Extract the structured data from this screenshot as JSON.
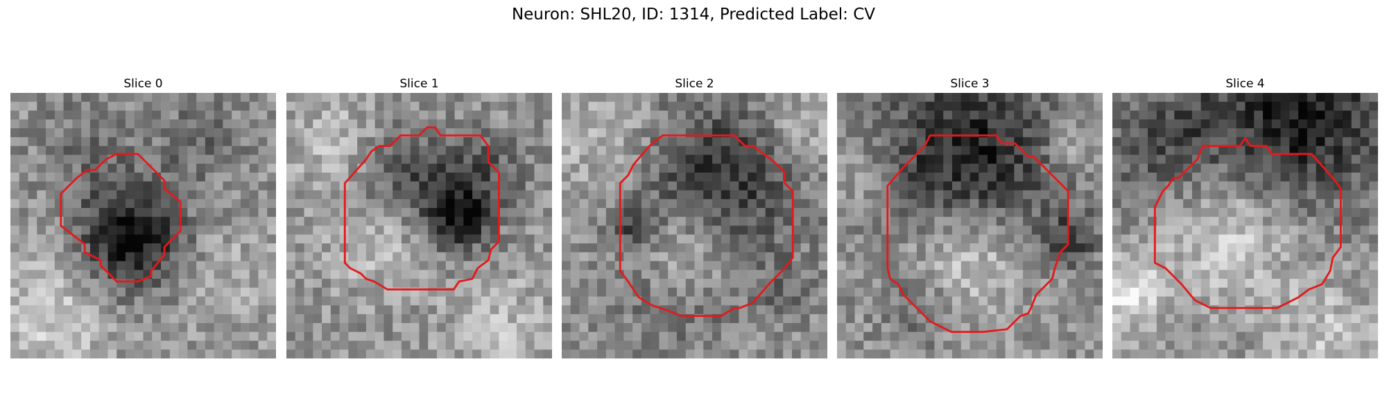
{
  "figure": {
    "title": "Neuron: SHL20, ID: 1314, Predicted Label: CV"
  },
  "colors": {
    "contour": "#e31a1c",
    "background": "#ffffff"
  },
  "slices": [
    {
      "title": "Slice 0",
      "seed": 11,
      "dark": [
        [
          0.46,
          0.55,
          0.2,
          1.0
        ],
        [
          0.72,
          0.18,
          0.15,
          0.35
        ],
        [
          0.3,
          0.2,
          0.2,
          0.25
        ]
      ],
      "bright": [
        [
          0.15,
          0.85,
          0.25,
          0.45
        ],
        [
          0.8,
          0.7,
          0.2,
          0.25
        ]
      ],
      "contour": [
        [
          0.4,
          0.23
        ],
        [
          0.48,
          0.23
        ],
        [
          0.58,
          0.33
        ],
        [
          0.58,
          0.36
        ],
        [
          0.64,
          0.41
        ],
        [
          0.64,
          0.52
        ],
        [
          0.58,
          0.58
        ],
        [
          0.58,
          0.61
        ],
        [
          0.53,
          0.67
        ],
        [
          0.53,
          0.69
        ],
        [
          0.48,
          0.71
        ],
        [
          0.4,
          0.71
        ],
        [
          0.34,
          0.65
        ],
        [
          0.34,
          0.63
        ],
        [
          0.28,
          0.6
        ],
        [
          0.28,
          0.57
        ],
        [
          0.19,
          0.5
        ],
        [
          0.19,
          0.38
        ],
        [
          0.25,
          0.32
        ],
        [
          0.29,
          0.29
        ],
        [
          0.32,
          0.29
        ],
        [
          0.36,
          0.25
        ]
      ]
    },
    {
      "title": "Slice 1",
      "seed": 23,
      "dark": [
        [
          0.65,
          0.48,
          0.12,
          0.85
        ],
        [
          0.45,
          0.32,
          0.2,
          0.55
        ],
        [
          0.75,
          0.3,
          0.15,
          0.4
        ]
      ],
      "bright": [
        [
          0.35,
          0.55,
          0.18,
          0.45
        ],
        [
          0.2,
          0.2,
          0.2,
          0.35
        ],
        [
          0.8,
          0.88,
          0.2,
          0.35
        ]
      ],
      "contour": [
        [
          0.43,
          0.16
        ],
        [
          0.5,
          0.16
        ],
        [
          0.53,
          0.13
        ],
        [
          0.56,
          0.13
        ],
        [
          0.58,
          0.16
        ],
        [
          0.73,
          0.16
        ],
        [
          0.76,
          0.2
        ],
        [
          0.76,
          0.26
        ],
        [
          0.8,
          0.3
        ],
        [
          0.8,
          0.56
        ],
        [
          0.77,
          0.59
        ],
        [
          0.76,
          0.63
        ],
        [
          0.72,
          0.66
        ],
        [
          0.7,
          0.7
        ],
        [
          0.65,
          0.71
        ],
        [
          0.63,
          0.74
        ],
        [
          0.38,
          0.74
        ],
        [
          0.33,
          0.71
        ],
        [
          0.3,
          0.7
        ],
        [
          0.28,
          0.68
        ],
        [
          0.24,
          0.66
        ],
        [
          0.22,
          0.64
        ],
        [
          0.22,
          0.34
        ],
        [
          0.3,
          0.25
        ],
        [
          0.32,
          0.22
        ],
        [
          0.35,
          0.2
        ],
        [
          0.39,
          0.2
        ]
      ]
    },
    {
      "title": "Slice 2",
      "seed": 37,
      "dark": [
        [
          0.6,
          0.33,
          0.3,
          0.7
        ],
        [
          0.25,
          0.5,
          0.08,
          0.45
        ],
        [
          0.45,
          0.75,
          0.25,
          0.3
        ],
        [
          0.85,
          0.75,
          0.12,
          0.25
        ]
      ],
      "bright": [
        [
          0.48,
          0.6,
          0.18,
          0.7
        ],
        [
          0.15,
          0.15,
          0.2,
          0.35
        ],
        [
          0.9,
          0.15,
          0.15,
          0.35
        ]
      ],
      "contour": [
        [
          0.38,
          0.16
        ],
        [
          0.65,
          0.16
        ],
        [
          0.69,
          0.2
        ],
        [
          0.72,
          0.2
        ],
        [
          0.8,
          0.26
        ],
        [
          0.84,
          0.3
        ],
        [
          0.84,
          0.34
        ],
        [
          0.87,
          0.37
        ],
        [
          0.87,
          0.62
        ],
        [
          0.84,
          0.66
        ],
        [
          0.78,
          0.72
        ],
        [
          0.72,
          0.79
        ],
        [
          0.67,
          0.81
        ],
        [
          0.65,
          0.81
        ],
        [
          0.6,
          0.84
        ],
        [
          0.45,
          0.84
        ],
        [
          0.4,
          0.82
        ],
        [
          0.34,
          0.8
        ],
        [
          0.29,
          0.77
        ],
        [
          0.25,
          0.71
        ],
        [
          0.22,
          0.67
        ],
        [
          0.22,
          0.34
        ],
        [
          0.25,
          0.31
        ],
        [
          0.27,
          0.27
        ],
        [
          0.33,
          0.2
        ]
      ]
    },
    {
      "title": "Slice 3",
      "seed": 53,
      "dark": [
        [
          0.5,
          0.25,
          0.35,
          0.85
        ],
        [
          0.88,
          0.55,
          0.1,
          0.55
        ],
        [
          0.3,
          0.8,
          0.15,
          0.3
        ]
      ],
      "bright": [
        [
          0.48,
          0.6,
          0.22,
          0.7
        ],
        [
          0.1,
          0.3,
          0.12,
          0.35
        ],
        [
          0.88,
          0.2,
          0.12,
          0.35
        ]
      ],
      "contour": [
        [
          0.35,
          0.16
        ],
        [
          0.6,
          0.16
        ],
        [
          0.62,
          0.19
        ],
        [
          0.67,
          0.19
        ],
        [
          0.72,
          0.24
        ],
        [
          0.74,
          0.24
        ],
        [
          0.83,
          0.33
        ],
        [
          0.87,
          0.37
        ],
        [
          0.87,
          0.57
        ],
        [
          0.84,
          0.6
        ],
        [
          0.82,
          0.66
        ],
        [
          0.81,
          0.7
        ],
        [
          0.75,
          0.76
        ],
        [
          0.73,
          0.81
        ],
        [
          0.72,
          0.83
        ],
        [
          0.69,
          0.84
        ],
        [
          0.64,
          0.89
        ],
        [
          0.55,
          0.9
        ],
        [
          0.43,
          0.9
        ],
        [
          0.35,
          0.86
        ],
        [
          0.3,
          0.81
        ],
        [
          0.25,
          0.76
        ],
        [
          0.23,
          0.72
        ],
        [
          0.2,
          0.7
        ],
        [
          0.19,
          0.66
        ],
        [
          0.19,
          0.35
        ],
        [
          0.25,
          0.28
        ],
        [
          0.33,
          0.2
        ]
      ]
    },
    {
      "title": "Slice 4",
      "seed": 71,
      "dark": [
        [
          0.7,
          0.06,
          0.35,
          0.9
        ],
        [
          0.1,
          0.25,
          0.2,
          0.35
        ],
        [
          0.28,
          0.12,
          0.15,
          0.3
        ]
      ],
      "bright": [
        [
          0.45,
          0.55,
          0.22,
          0.55
        ],
        [
          0.05,
          0.75,
          0.15,
          0.65
        ],
        [
          0.8,
          0.9,
          0.2,
          0.4
        ]
      ],
      "contour": [
        [
          0.34,
          0.2
        ],
        [
          0.48,
          0.2
        ],
        [
          0.5,
          0.17
        ],
        [
          0.52,
          0.2
        ],
        [
          0.58,
          0.2
        ],
        [
          0.6,
          0.23
        ],
        [
          0.75,
          0.23
        ],
        [
          0.83,
          0.32
        ],
        [
          0.86,
          0.36
        ],
        [
          0.86,
          0.58
        ],
        [
          0.83,
          0.62
        ],
        [
          0.82,
          0.67
        ],
        [
          0.79,
          0.72
        ],
        [
          0.74,
          0.74
        ],
        [
          0.7,
          0.77
        ],
        [
          0.62,
          0.81
        ],
        [
          0.37,
          0.81
        ],
        [
          0.31,
          0.78
        ],
        [
          0.26,
          0.72
        ],
        [
          0.2,
          0.66
        ],
        [
          0.16,
          0.64
        ],
        [
          0.16,
          0.43
        ],
        [
          0.19,
          0.37
        ],
        [
          0.21,
          0.35
        ],
        [
          0.23,
          0.32
        ],
        [
          0.25,
          0.32
        ],
        [
          0.32,
          0.25
        ]
      ]
    }
  ]
}
